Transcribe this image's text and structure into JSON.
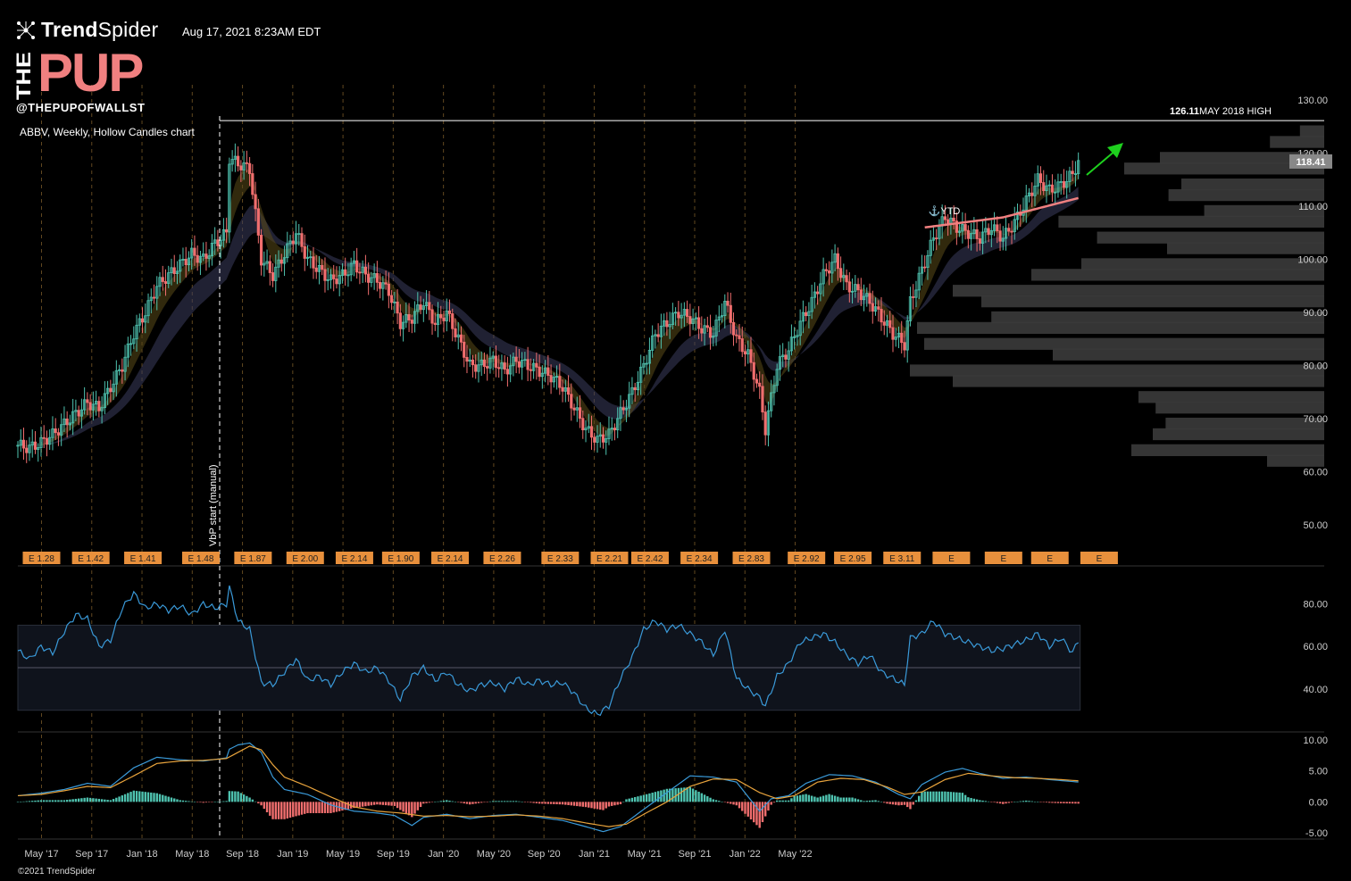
{
  "header": {
    "brand_bold": "Trend",
    "brand_thin": "Spider",
    "timestamp": "Aug 17, 2021 8:23AM EDT",
    "logo_the": "THE",
    "logo_pup": "PUP",
    "handle": "@THEPUPOFWALLST",
    "chart_title": "ABBV, Weekly, Hollow Candles chart",
    "copyright": "©2021 TrendSpider",
    "icon": "trendspider-network-icon"
  },
  "colors": {
    "bull": "#4fc3b0",
    "bear": "#f06e6e",
    "rsi": "#3a9ad9",
    "macd": "#3a9ad9",
    "signal": "#e8a33c",
    "volume_profile": "#3a3a3a",
    "earnings_box": "#e8903c",
    "arrow": "#1ed01e",
    "pup": "#f08080"
  },
  "chart_data": [
    {
      "type": "candlestick",
      "symbol": "ABBV",
      "timeframe": "Weekly",
      "style": "Hollow Candles",
      "price_axis": {
        "ylim": [
          46,
          132
        ],
        "ticks": [
          "130.00",
          "120.00",
          "110.00",
          "100.00",
          "90.00",
          "80.00",
          "70.00",
          "60.00",
          "50.00"
        ]
      },
      "last_price": "118.41",
      "resistance": {
        "value": 126.11,
        "value_label": "126.11",
        "label": "MAY 2018 HIGH"
      },
      "avwap_label": "YTD",
      "vbp_label": "VbP start (manual)",
      "close_path": [
        [
          0,
          65
        ],
        [
          4,
          64.5
        ],
        [
          8,
          65.5
        ],
        [
          12,
          67
        ],
        [
          16,
          69
        ],
        [
          20,
          71
        ],
        [
          24,
          73
        ],
        [
          28,
          72
        ],
        [
          32,
          76
        ],
        [
          36,
          80
        ],
        [
          40,
          86
        ],
        [
          44,
          90
        ],
        [
          48,
          95
        ],
        [
          52,
          97
        ],
        [
          56,
          99
        ],
        [
          60,
          101
        ],
        [
          64,
          100
        ],
        [
          68,
          103
        ],
        [
          72,
          105
        ],
        [
          73,
          119
        ],
        [
          76,
          118
        ],
        [
          80,
          117
        ],
        [
          84,
          100
        ],
        [
          88,
          97
        ],
        [
          92,
          101
        ],
        [
          96,
          105
        ],
        [
          100,
          100
        ],
        [
          104,
          98
        ],
        [
          108,
          96
        ],
        [
          112,
          97
        ],
        [
          116,
          99
        ],
        [
          120,
          97
        ],
        [
          124,
          96
        ],
        [
          128,
          94
        ],
        [
          132,
          88
        ],
        [
          136,
          89
        ],
        [
          140,
          92
        ],
        [
          144,
          88
        ],
        [
          148,
          90
        ],
        [
          152,
          85
        ],
        [
          156,
          80
        ],
        [
          160,
          80
        ],
        [
          164,
          81
        ],
        [
          168,
          79
        ],
        [
          172,
          81
        ],
        [
          176,
          80
        ],
        [
          180,
          79
        ],
        [
          184,
          78
        ],
        [
          188,
          76
        ],
        [
          192,
          72
        ],
        [
          196,
          68
        ],
        [
          200,
          66
        ],
        [
          204,
          67
        ],
        [
          208,
          71
        ],
        [
          212,
          75
        ],
        [
          216,
          80
        ],
        [
          220,
          86
        ],
        [
          224,
          88
        ],
        [
          228,
          90
        ],
        [
          232,
          89
        ],
        [
          236,
          87
        ],
        [
          240,
          86
        ],
        [
          244,
          92
        ],
        [
          248,
          85
        ],
        [
          252,
          82
        ],
        [
          256,
          75
        ],
        [
          258,
          68
        ],
        [
          262,
          80
        ],
        [
          266,
          83
        ],
        [
          270,
          88
        ],
        [
          274,
          92
        ],
        [
          278,
          97
        ],
        [
          282,
          100
        ],
        [
          286,
          95
        ],
        [
          290,
          94
        ],
        [
          294,
          92
        ],
        [
          298,
          89
        ],
        [
          302,
          86
        ],
        [
          306,
          84
        ],
        [
          308,
          92
        ],
        [
          312,
          98
        ],
        [
          316,
          104
        ],
        [
          320,
          108
        ],
        [
          324,
          106
        ],
        [
          328,
          105
        ],
        [
          332,
          104
        ],
        [
          336,
          106
        ],
        [
          340,
          104
        ],
        [
          344,
          107
        ],
        [
          348,
          111
        ],
        [
          352,
          115
        ],
        [
          356,
          113
        ],
        [
          360,
          114
        ],
        [
          364,
          116
        ],
        [
          366,
          118.41
        ]
      ],
      "overlays": [
        "EMA cloud (fast)",
        "EMA cloud (slow)",
        "Anchored VWAP"
      ],
      "volume_profile": [
        {
          "price": 124,
          "size": 0.17
        },
        {
          "price": 122,
          "size": 0.38
        },
        {
          "price": 119,
          "size": 1.15
        },
        {
          "price": 117,
          "size": 1.4
        },
        {
          "price": 114,
          "size": 1.0
        },
        {
          "price": 112,
          "size": 1.09
        },
        {
          "price": 109,
          "size": 0.84
        },
        {
          "price": 107,
          "size": 1.86
        },
        {
          "price": 104,
          "size": 1.59
        },
        {
          "price": 102,
          "size": 1.1
        },
        {
          "price": 99,
          "size": 1.7
        },
        {
          "price": 97,
          "size": 2.05
        },
        {
          "price": 94,
          "size": 2.6
        },
        {
          "price": 92,
          "size": 2.4
        },
        {
          "price": 89,
          "size": 2.33
        },
        {
          "price": 87,
          "size": 2.85
        },
        {
          "price": 84,
          "size": 2.8
        },
        {
          "price": 82,
          "size": 1.9
        },
        {
          "price": 79,
          "size": 2.9
        },
        {
          "price": 77,
          "size": 2.6
        },
        {
          "price": 74,
          "size": 1.3
        },
        {
          "price": 72,
          "size": 1.18
        },
        {
          "price": 69,
          "size": 1.11
        },
        {
          "price": 67,
          "size": 1.2
        },
        {
          "price": 64,
          "size": 1.35
        },
        {
          "price": 62,
          "size": 0.4
        }
      ]
    },
    {
      "type": "bar",
      "name": "earnings",
      "labels": [
        "E 1.28",
        "E 1.42",
        "E 1.41",
        "E 1.48",
        "E 1.87",
        "E 2.00",
        "E 2.14",
        "E 1.90",
        "E 2.14",
        "E 2.26",
        "E 2.33",
        "E 2.21",
        "E 2.42",
        "E 2.34",
        "E 2.83",
        "E 2.92",
        "E 2.95",
        "E 3.11",
        "E",
        "E",
        "E",
        "E"
      ],
      "weeks": [
        2,
        19,
        37,
        57,
        75,
        93,
        110,
        126,
        143,
        161,
        181,
        198,
        212,
        229,
        247,
        266,
        282,
        299,
        316,
        334,
        350,
        367
      ]
    },
    {
      "type": "line",
      "name": "RSI",
      "ylim": [
        24,
        92
      ],
      "ticks": [
        "80.00",
        "60.00",
        "40.00"
      ],
      "bands": [
        30,
        50,
        70
      ],
      "values": [
        [
          0,
          58
        ],
        [
          4,
          54
        ],
        [
          8,
          60
        ],
        [
          12,
          57
        ],
        [
          16,
          67
        ],
        [
          20,
          75
        ],
        [
          24,
          73
        ],
        [
          28,
          60
        ],
        [
          32,
          63
        ],
        [
          36,
          78
        ],
        [
          40,
          85
        ],
        [
          44,
          78
        ],
        [
          48,
          80
        ],
        [
          52,
          77
        ],
        [
          56,
          79
        ],
        [
          60,
          75
        ],
        [
          64,
          80
        ],
        [
          68,
          78
        ],
        [
          72,
          80
        ],
        [
          73,
          88
        ],
        [
          76,
          72
        ],
        [
          80,
          68
        ],
        [
          84,
          43
        ],
        [
          88,
          42
        ],
        [
          92,
          48
        ],
        [
          96,
          54
        ],
        [
          100,
          44
        ],
        [
          104,
          46
        ],
        [
          108,
          42
        ],
        [
          112,
          48
        ],
        [
          116,
          52
        ],
        [
          120,
          48
        ],
        [
          124,
          50
        ],
        [
          128,
          44
        ],
        [
          132,
          35
        ],
        [
          136,
          46
        ],
        [
          140,
          50
        ],
        [
          144,
          44
        ],
        [
          148,
          48
        ],
        [
          152,
          42
        ],
        [
          156,
          39
        ],
        [
          160,
          42
        ],
        [
          164,
          43
        ],
        [
          168,
          40
        ],
        [
          172,
          45
        ],
        [
          176,
          42
        ],
        [
          180,
          44
        ],
        [
          184,
          42
        ],
        [
          188,
          43
        ],
        [
          192,
          38
        ],
        [
          196,
          31
        ],
        [
          200,
          28
        ],
        [
          204,
          32
        ],
        [
          208,
          45
        ],
        [
          212,
          55
        ],
        [
          216,
          68
        ],
        [
          220,
          72
        ],
        [
          224,
          68
        ],
        [
          228,
          70
        ],
        [
          232,
          66
        ],
        [
          236,
          62
        ],
        [
          240,
          56
        ],
        [
          244,
          68
        ],
        [
          248,
          45
        ],
        [
          252,
          40
        ],
        [
          256,
          36
        ],
        [
          258,
          32
        ],
        [
          262,
          46
        ],
        [
          266,
          52
        ],
        [
          270,
          62
        ],
        [
          274,
          64
        ],
        [
          278,
          66
        ],
        [
          282,
          62
        ],
        [
          286,
          56
        ],
        [
          290,
          52
        ],
        [
          294,
          56
        ],
        [
          298,
          48
        ],
        [
          302,
          45
        ],
        [
          306,
          42
        ],
        [
          308,
          64
        ],
        [
          312,
          66
        ],
        [
          316,
          72
        ],
        [
          320,
          66
        ],
        [
          324,
          64
        ],
        [
          328,
          62
        ],
        [
          332,
          60
        ],
        [
          336,
          58
        ],
        [
          340,
          59
        ],
        [
          344,
          61
        ],
        [
          348,
          63
        ],
        [
          352,
          66
        ],
        [
          356,
          60
        ],
        [
          360,
          64
        ],
        [
          364,
          57
        ],
        [
          366,
          63
        ]
      ]
    },
    {
      "type": "line",
      "name": "MACD",
      "ylim": [
        -6,
        11
      ],
      "ticks": [
        "10.00",
        "5.00",
        "0.00",
        "-5.00"
      ],
      "macd": [
        [
          0,
          1
        ],
        [
          8,
          1.4
        ],
        [
          16,
          2
        ],
        [
          24,
          3
        ],
        [
          32,
          2.5
        ],
        [
          40,
          5.5
        ],
        [
          48,
          7.2
        ],
        [
          56,
          6.8
        ],
        [
          64,
          6.6
        ],
        [
          72,
          7.1
        ],
        [
          73,
          8.5
        ],
        [
          76,
          9.2
        ],
        [
          80,
          9.5
        ],
        [
          84,
          8
        ],
        [
          88,
          4
        ],
        [
          92,
          2
        ],
        [
          100,
          1.2
        ],
        [
          108,
          -0.5
        ],
        [
          116,
          -1.5
        ],
        [
          124,
          -1.8
        ],
        [
          130,
          -2.2
        ],
        [
          136,
          -3.8
        ],
        [
          140,
          -2.5
        ],
        [
          148,
          -2.0
        ],
        [
          156,
          -2.7
        ],
        [
          164,
          -2.2
        ],
        [
          172,
          -2
        ],
        [
          180,
          -2.5
        ],
        [
          188,
          -3
        ],
        [
          196,
          -4
        ],
        [
          202,
          -4.8
        ],
        [
          208,
          -4
        ],
        [
          216,
          -1.2
        ],
        [
          224,
          1.5
        ],
        [
          232,
          4.2
        ],
        [
          240,
          4
        ],
        [
          248,
          3.2
        ],
        [
          256,
          -1.5
        ],
        [
          260,
          0.5
        ],
        [
          266,
          1
        ],
        [
          272,
          3
        ],
        [
          280,
          4.4
        ],
        [
          288,
          4.2
        ],
        [
          296,
          3.2
        ],
        [
          304,
          1.2
        ],
        [
          308,
          0.5
        ],
        [
          312,
          2.8
        ],
        [
          320,
          4.8
        ],
        [
          326,
          5.4
        ],
        [
          332,
          4.6
        ],
        [
          340,
          3.8
        ],
        [
          348,
          4
        ],
        [
          356,
          3.6
        ],
        [
          366,
          3.2
        ]
      ],
      "signal": [
        [
          0,
          1
        ],
        [
          8,
          1.2
        ],
        [
          16,
          1.8
        ],
        [
          24,
          2.5
        ],
        [
          32,
          2.3
        ],
        [
          40,
          4.2
        ],
        [
          48,
          6.2
        ],
        [
          56,
          6.6
        ],
        [
          64,
          6.7
        ],
        [
          72,
          7
        ],
        [
          76,
          8
        ],
        [
          80,
          9
        ],
        [
          84,
          8.4
        ],
        [
          88,
          6
        ],
        [
          92,
          4
        ],
        [
          100,
          2.5
        ],
        [
          108,
          0.8
        ],
        [
          116,
          -0.8
        ],
        [
          124,
          -1.5
        ],
        [
          132,
          -1.8
        ],
        [
          140,
          -2.3
        ],
        [
          148,
          -2.2
        ],
        [
          156,
          -2.4
        ],
        [
          164,
          -2.3
        ],
        [
          172,
          -2.1
        ],
        [
          180,
          -2.3
        ],
        [
          188,
          -2.7
        ],
        [
          196,
          -3.4
        ],
        [
          204,
          -4.0
        ],
        [
          210,
          -3.6
        ],
        [
          216,
          -2
        ],
        [
          224,
          0
        ],
        [
          232,
          2.5
        ],
        [
          240,
          3.7
        ],
        [
          248,
          3.6
        ],
        [
          256,
          1.5
        ],
        [
          262,
          0.5
        ],
        [
          268,
          1
        ],
        [
          276,
          3.2
        ],
        [
          284,
          3.8
        ],
        [
          292,
          3.6
        ],
        [
          300,
          2.4
        ],
        [
          306,
          1.2
        ],
        [
          312,
          1.6
        ],
        [
          320,
          3.6
        ],
        [
          328,
          4.6
        ],
        [
          336,
          4.2
        ],
        [
          344,
          3.9
        ],
        [
          352,
          3.8
        ],
        [
          360,
          3.6
        ],
        [
          366,
          3.4
        ]
      ]
    },
    {
      "type": "time_axis",
      "labels": [
        "May '17",
        "Sep '17",
        "Jan '18",
        "May '18",
        "Sep '18",
        "Jan '19",
        "May '19",
        "Sep '19",
        "Jan '20",
        "May '20",
        "Sep '20",
        "Jan '21",
        "May '21",
        "Sep '21",
        "Jan '22",
        "May '22"
      ]
    }
  ]
}
